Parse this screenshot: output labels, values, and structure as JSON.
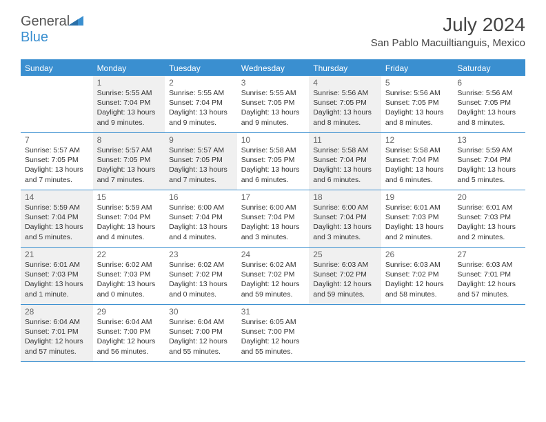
{
  "logo": {
    "text1": "General",
    "text2": "Blue"
  },
  "title": "July 2024",
  "location": "San Pablo Macuiltianguis, Mexico",
  "colors": {
    "accent": "#3a8fd0",
    "shaded": "#f0f0f0",
    "text_dark": "#333333",
    "text_gray": "#666666",
    "header_text": "#ffffff"
  },
  "day_headers": [
    "Sunday",
    "Monday",
    "Tuesday",
    "Wednesday",
    "Thursday",
    "Friday",
    "Saturday"
  ],
  "weeks": [
    [
      {
        "num": "",
        "shaded": false,
        "sunrise": "",
        "sunset": "",
        "daylight": ""
      },
      {
        "num": "1",
        "shaded": true,
        "sunrise": "Sunrise: 5:55 AM",
        "sunset": "Sunset: 7:04 PM",
        "daylight": "Daylight: 13 hours and 9 minutes."
      },
      {
        "num": "2",
        "shaded": false,
        "sunrise": "Sunrise: 5:55 AM",
        "sunset": "Sunset: 7:04 PM",
        "daylight": "Daylight: 13 hours and 9 minutes."
      },
      {
        "num": "3",
        "shaded": false,
        "sunrise": "Sunrise: 5:55 AM",
        "sunset": "Sunset: 7:05 PM",
        "daylight": "Daylight: 13 hours and 9 minutes."
      },
      {
        "num": "4",
        "shaded": true,
        "sunrise": "Sunrise: 5:56 AM",
        "sunset": "Sunset: 7:05 PM",
        "daylight": "Daylight: 13 hours and 8 minutes."
      },
      {
        "num": "5",
        "shaded": false,
        "sunrise": "Sunrise: 5:56 AM",
        "sunset": "Sunset: 7:05 PM",
        "daylight": "Daylight: 13 hours and 8 minutes."
      },
      {
        "num": "6",
        "shaded": false,
        "sunrise": "Sunrise: 5:56 AM",
        "sunset": "Sunset: 7:05 PM",
        "daylight": "Daylight: 13 hours and 8 minutes."
      }
    ],
    [
      {
        "num": "7",
        "shaded": false,
        "sunrise": "Sunrise: 5:57 AM",
        "sunset": "Sunset: 7:05 PM",
        "daylight": "Daylight: 13 hours and 7 minutes."
      },
      {
        "num": "8",
        "shaded": true,
        "sunrise": "Sunrise: 5:57 AM",
        "sunset": "Sunset: 7:05 PM",
        "daylight": "Daylight: 13 hours and 7 minutes."
      },
      {
        "num": "9",
        "shaded": true,
        "sunrise": "Sunrise: 5:57 AM",
        "sunset": "Sunset: 7:05 PM",
        "daylight": "Daylight: 13 hours and 7 minutes."
      },
      {
        "num": "10",
        "shaded": false,
        "sunrise": "Sunrise: 5:58 AM",
        "sunset": "Sunset: 7:05 PM",
        "daylight": "Daylight: 13 hours and 6 minutes."
      },
      {
        "num": "11",
        "shaded": true,
        "sunrise": "Sunrise: 5:58 AM",
        "sunset": "Sunset: 7:04 PM",
        "daylight": "Daylight: 13 hours and 6 minutes."
      },
      {
        "num": "12",
        "shaded": false,
        "sunrise": "Sunrise: 5:58 AM",
        "sunset": "Sunset: 7:04 PM",
        "daylight": "Daylight: 13 hours and 6 minutes."
      },
      {
        "num": "13",
        "shaded": false,
        "sunrise": "Sunrise: 5:59 AM",
        "sunset": "Sunset: 7:04 PM",
        "daylight": "Daylight: 13 hours and 5 minutes."
      }
    ],
    [
      {
        "num": "14",
        "shaded": true,
        "sunrise": "Sunrise: 5:59 AM",
        "sunset": "Sunset: 7:04 PM",
        "daylight": "Daylight: 13 hours and 5 minutes."
      },
      {
        "num": "15",
        "shaded": false,
        "sunrise": "Sunrise: 5:59 AM",
        "sunset": "Sunset: 7:04 PM",
        "daylight": "Daylight: 13 hours and 4 minutes."
      },
      {
        "num": "16",
        "shaded": false,
        "sunrise": "Sunrise: 6:00 AM",
        "sunset": "Sunset: 7:04 PM",
        "daylight": "Daylight: 13 hours and 4 minutes."
      },
      {
        "num": "17",
        "shaded": false,
        "sunrise": "Sunrise: 6:00 AM",
        "sunset": "Sunset: 7:04 PM",
        "daylight": "Daylight: 13 hours and 3 minutes."
      },
      {
        "num": "18",
        "shaded": true,
        "sunrise": "Sunrise: 6:00 AM",
        "sunset": "Sunset: 7:04 PM",
        "daylight": "Daylight: 13 hours and 3 minutes."
      },
      {
        "num": "19",
        "shaded": false,
        "sunrise": "Sunrise: 6:01 AM",
        "sunset": "Sunset: 7:03 PM",
        "daylight": "Daylight: 13 hours and 2 minutes."
      },
      {
        "num": "20",
        "shaded": false,
        "sunrise": "Sunrise: 6:01 AM",
        "sunset": "Sunset: 7:03 PM",
        "daylight": "Daylight: 13 hours and 2 minutes."
      }
    ],
    [
      {
        "num": "21",
        "shaded": true,
        "sunrise": "Sunrise: 6:01 AM",
        "sunset": "Sunset: 7:03 PM",
        "daylight": "Daylight: 13 hours and 1 minute."
      },
      {
        "num": "22",
        "shaded": false,
        "sunrise": "Sunrise: 6:02 AM",
        "sunset": "Sunset: 7:03 PM",
        "daylight": "Daylight: 13 hours and 0 minutes."
      },
      {
        "num": "23",
        "shaded": false,
        "sunrise": "Sunrise: 6:02 AM",
        "sunset": "Sunset: 7:02 PM",
        "daylight": "Daylight: 13 hours and 0 minutes."
      },
      {
        "num": "24",
        "shaded": false,
        "sunrise": "Sunrise: 6:02 AM",
        "sunset": "Sunset: 7:02 PM",
        "daylight": "Daylight: 12 hours and 59 minutes."
      },
      {
        "num": "25",
        "shaded": true,
        "sunrise": "Sunrise: 6:03 AM",
        "sunset": "Sunset: 7:02 PM",
        "daylight": "Daylight: 12 hours and 59 minutes."
      },
      {
        "num": "26",
        "shaded": false,
        "sunrise": "Sunrise: 6:03 AM",
        "sunset": "Sunset: 7:02 PM",
        "daylight": "Daylight: 12 hours and 58 minutes."
      },
      {
        "num": "27",
        "shaded": false,
        "sunrise": "Sunrise: 6:03 AM",
        "sunset": "Sunset: 7:01 PM",
        "daylight": "Daylight: 12 hours and 57 minutes."
      }
    ],
    [
      {
        "num": "28",
        "shaded": true,
        "sunrise": "Sunrise: 6:04 AM",
        "sunset": "Sunset: 7:01 PM",
        "daylight": "Daylight: 12 hours and 57 minutes."
      },
      {
        "num": "29",
        "shaded": false,
        "sunrise": "Sunrise: 6:04 AM",
        "sunset": "Sunset: 7:00 PM",
        "daylight": "Daylight: 12 hours and 56 minutes."
      },
      {
        "num": "30",
        "shaded": false,
        "sunrise": "Sunrise: 6:04 AM",
        "sunset": "Sunset: 7:00 PM",
        "daylight": "Daylight: 12 hours and 55 minutes."
      },
      {
        "num": "31",
        "shaded": false,
        "sunrise": "Sunrise: 6:05 AM",
        "sunset": "Sunset: 7:00 PM",
        "daylight": "Daylight: 12 hours and 55 minutes."
      },
      {
        "num": "",
        "shaded": false,
        "sunrise": "",
        "sunset": "",
        "daylight": ""
      },
      {
        "num": "",
        "shaded": false,
        "sunrise": "",
        "sunset": "",
        "daylight": ""
      },
      {
        "num": "",
        "shaded": false,
        "sunrise": "",
        "sunset": "",
        "daylight": ""
      }
    ]
  ]
}
